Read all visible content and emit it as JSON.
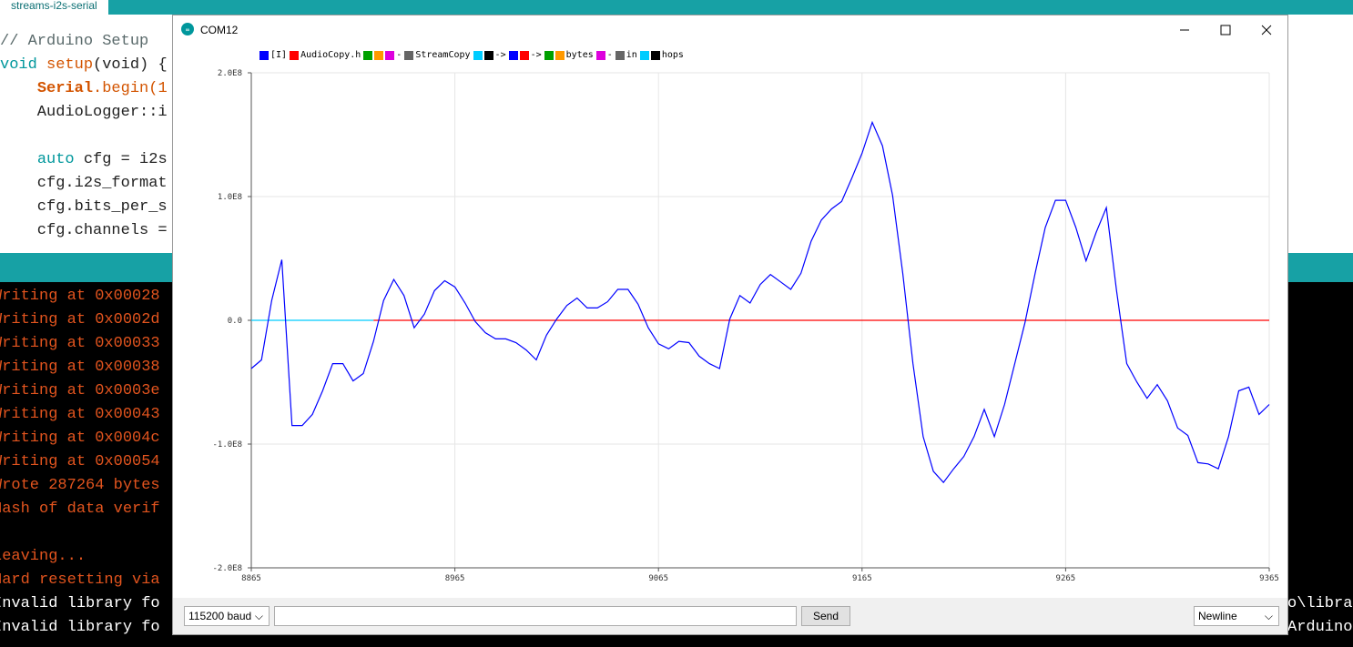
{
  "ide": {
    "tab": "streams-i2s-serial",
    "code": [
      [
        "// Arduino Setup"
      ],
      [
        "void",
        " setup",
        "(void) {"
      ],
      [
        "    ",
        "Serial",
        ".begin(1"
      ],
      [
        "    AudioLogger::i"
      ],
      [],
      [
        "    ",
        "auto",
        " cfg = i2s"
      ],
      [
        "    cfg.i2s_format"
      ],
      [
        "    cfg.bits_per_s"
      ],
      [
        "    cfg.channels ="
      ]
    ],
    "console": [
      "Writing at 0x00028",
      "Writing at 0x0002d",
      "Writing at 0x00033",
      "Writing at 0x00038",
      "Writing at 0x0003e",
      "Writing at 0x00043",
      "Writing at 0x0004c",
      "Writing at 0x00054",
      "Wrote 287264 bytes",
      "Hash of data verif",
      null,
      "Leaving...",
      "Hard resetting via",
      "Invalid library fo",
      "Invalid library fo"
    ],
    "console_right": [
      "o\\libra",
      "Arduino"
    ]
  },
  "window": {
    "title": "COM12",
    "baud": "115200 baud",
    "send": "Send",
    "line_ending": "Newline"
  },
  "chart_data": {
    "type": "line",
    "xlim": [
      8865,
      9365
    ],
    "xticks": [
      8865,
      8965,
      9065,
      9165,
      9265,
      9365
    ],
    "ylim": [
      -200000000,
      200000000
    ],
    "yticks": [
      {
        "value": -200000000,
        "label": "-2.0E8"
      },
      {
        "value": -100000000,
        "label": "-1.0E8"
      },
      {
        "value": 0,
        "label": "0.0"
      },
      {
        "value": 100000000,
        "label": "1.0E8"
      },
      {
        "value": 200000000,
        "label": "2.0E8"
      }
    ],
    "grid": true,
    "x": [
      8865,
      8870,
      8875,
      8880,
      8885,
      8890,
      8895,
      8900,
      8905,
      8910,
      8915,
      8920,
      8925,
      8930,
      8935,
      8940,
      8945,
      8950,
      8955,
      8960,
      8965,
      8970,
      8975,
      8980,
      8985,
      8990,
      8995,
      9000,
      9005,
      9010,
      9015,
      9020,
      9025,
      9030,
      9035,
      9040,
      9045,
      9050,
      9055,
      9060,
      9065,
      9070,
      9075,
      9080,
      9085,
      9090,
      9095,
      9100,
      9105,
      9110,
      9115,
      9120,
      9125,
      9130,
      9135,
      9140,
      9145,
      9150,
      9155,
      9160,
      9165,
      9170,
      9175,
      9180,
      9185,
      9190,
      9195,
      9200,
      9205,
      9210,
      9215,
      9220,
      9225,
      9230,
      9235,
      9240,
      9245,
      9250,
      9255,
      9260,
      9265,
      9270,
      9275,
      9280,
      9285,
      9290,
      9295,
      9300,
      9305,
      9310,
      9315,
      9320,
      9325,
      9330,
      9335,
      9340,
      9345,
      9350,
      9355,
      9360,
      9365
    ],
    "series": [
      {
        "name": "[I]",
        "color": "#0000ff",
        "values": [
          -39000000,
          -32000000,
          16000000,
          49000000,
          -85000000,
          -85000000,
          -76000000,
          -57000000,
          -35000000,
          -35000000,
          -49000000,
          -43000000,
          -17000000,
          16000000,
          33000000,
          20000000,
          -6000000,
          5000000,
          24000000,
          32000000,
          27000000,
          14000000,
          -1000000,
          -10000000,
          -15000000,
          -15000000,
          -18000000,
          -24000000,
          -32000000,
          -12000000,
          1000000,
          12000000,
          18000000,
          10000000,
          10000000,
          15000000,
          25000000,
          25000000,
          13000000,
          -6000000,
          -19000000,
          -23000000,
          -17000000,
          -18000000,
          -29000000,
          -35000000,
          -39000000,
          1000000,
          20000000,
          14000000,
          29000000,
          37000000,
          31000000,
          25000000,
          38000000,
          64000000,
          81000000,
          90000000,
          96000000,
          115000000,
          135000000,
          160000000,
          141000000,
          101000000,
          38000000,
          -35000000,
          -94000000,
          -122000000,
          -131000000,
          -120000000,
          -110000000,
          -94000000,
          -72000000,
          -94000000,
          -68000000,
          -35000000,
          -2000000,
          38000000,
          75000000,
          97000000,
          97000000,
          75000000,
          48000000,
          71000000,
          91000000,
          24000000,
          -35000000,
          -50000000,
          -63000000,
          -52000000,
          -65000000,
          -87000000,
          -93000000,
          -115000000,
          -116000000,
          -120000000,
          -94000000,
          -57000000,
          -54000000,
          -76000000,
          -68000000
        ]
      },
      {
        "name": "AudioCopy.h",
        "color": "#ff0000",
        "values": [
          null,
          null,
          null,
          null,
          null,
          null,
          null,
          null,
          null,
          null,
          null,
          null,
          0,
          0,
          0,
          0,
          0,
          0,
          0,
          0,
          0,
          0,
          0,
          0,
          0,
          0,
          0,
          0,
          0,
          0,
          0,
          0,
          0,
          0,
          0,
          0,
          0,
          0,
          0,
          0,
          0,
          0,
          0,
          0,
          0,
          0,
          0,
          0,
          0,
          0,
          0,
          0,
          0,
          0,
          0,
          0,
          0,
          0,
          0,
          0,
          0,
          0,
          0,
          0,
          0,
          0,
          0,
          0,
          0,
          0,
          0,
          0,
          0,
          0,
          0,
          0,
          0,
          0,
          0,
          0,
          0,
          0,
          0,
          0,
          0,
          0,
          0,
          0,
          0,
          0,
          0,
          0,
          0,
          0,
          0,
          0,
          0,
          0,
          0,
          0,
          0
        ]
      },
      {
        "color": "#00a000"
      },
      {
        "color": "#ff9900"
      },
      {
        "name": "-",
        "color": "#dd00dd"
      },
      {
        "name": "StreamCopy",
        "color": "#666666"
      },
      {
        "color": "#00ccff",
        "values": [
          0,
          0,
          0,
          0,
          0,
          0,
          0,
          0,
          0,
          0,
          0,
          0,
          0,
          null,
          null,
          null,
          null,
          null,
          null,
          null,
          null,
          null,
          null,
          null,
          null,
          null,
          null,
          null,
          null,
          null,
          null,
          null,
          null,
          null,
          null,
          null,
          null,
          null,
          null,
          null,
          null,
          null,
          null,
          null,
          null,
          null,
          null,
          null,
          null,
          null,
          null,
          null,
          null,
          null,
          null,
          null,
          null,
          null,
          null,
          null,
          null,
          null,
          null,
          null,
          null,
          null,
          null,
          null,
          null,
          null,
          null,
          null,
          null,
          null,
          null,
          null,
          null,
          null,
          null,
          null,
          null,
          null,
          null,
          null,
          null,
          null,
          null,
          null,
          null,
          null,
          null,
          null,
          null,
          null,
          null,
          null,
          null,
          null,
          null,
          null,
          null
        ]
      },
      {
        "name": "->",
        "color": "#000000"
      },
      {
        "color": "#0000ff"
      },
      {
        "name": "->",
        "color": "#ff0000"
      },
      {
        "color": "#00a000"
      },
      {
        "name": "bytes",
        "color": "#ff9900"
      },
      {
        "name": "-",
        "color": "#dd00dd"
      },
      {
        "name": "in",
        "color": "#666666"
      },
      {
        "color": "#00ccff"
      },
      {
        "name": "hops",
        "color": "#000000"
      }
    ]
  }
}
